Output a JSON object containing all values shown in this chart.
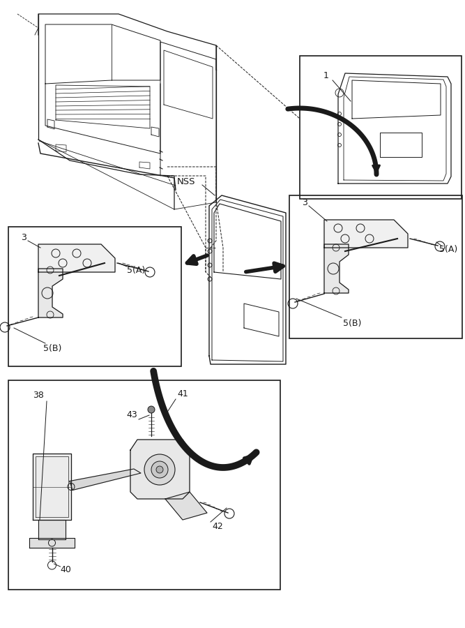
{
  "bg": "#ffffff",
  "lc": "#1a1a1a",
  "fig_w": 6.67,
  "fig_h": 9.0,
  "dpi": 100,
  "nss": "NSS",
  "labels": {
    "box1": "1",
    "box2_parts": [
      "3",
      "5(A)",
      "5(B)"
    ],
    "box3_parts": [
      "3",
      "5(A)",
      "5(B)"
    ],
    "box4_parts": [
      "38",
      "40",
      "41",
      "42",
      "43"
    ]
  },
  "boxes": {
    "b1": [
      430,
      615,
      232,
      205
    ],
    "b2": [
      12,
      375,
      248,
      200
    ],
    "b3": [
      415,
      415,
      248,
      205
    ],
    "b4": [
      12,
      55,
      390,
      300
    ]
  }
}
